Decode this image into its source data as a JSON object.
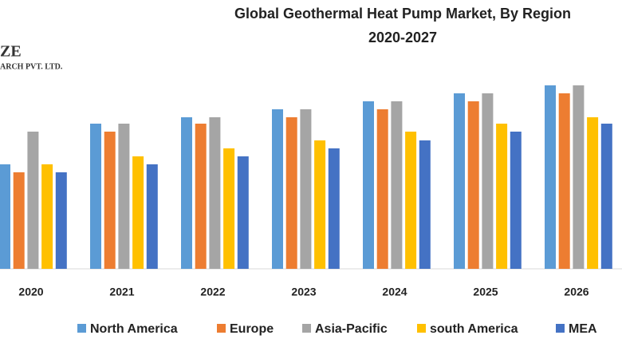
{
  "chart_data": {
    "type": "bar",
    "title": "Global Geothermal Heat Pump Market, By Region",
    "subtitle": "2020-2027",
    "logo": {
      "line1": "ZE",
      "line2": "ARCH PVT. LTD."
    },
    "categories": [
      "2020",
      "2021",
      "2022",
      "2023",
      "2024",
      "2025",
      "2026"
    ],
    "series": [
      {
        "name": "North America",
        "color": "#5b9bd5",
        "values": [
          131,
          182,
          190,
          200,
          210,
          220,
          230
        ]
      },
      {
        "name": "Europe",
        "color": "#ed7d31",
        "values": [
          121,
          172,
          182,
          190,
          200,
          210,
          220
        ]
      },
      {
        "name": "Asia-Pacific",
        "color": "#a5a5a5",
        "values": [
          172,
          182,
          190,
          200,
          210,
          220,
          230
        ]
      },
      {
        "name": "south America",
        "color": "#ffc000",
        "values": [
          131,
          141,
          151,
          161,
          172,
          182,
          190
        ]
      },
      {
        "name": "MEA",
        "color": "#4472c4",
        "values": [
          121,
          131,
          141,
          151,
          161,
          172,
          182
        ]
      }
    ]
  }
}
